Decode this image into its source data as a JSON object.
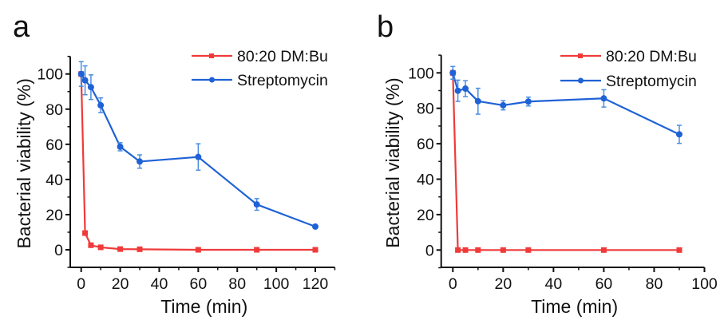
{
  "chart_data": [
    {
      "panel": "a",
      "type": "line",
      "title": "",
      "xlabel": "Time (min)",
      "ylabel": "Bacterial viability (%)",
      "xlim": [
        -5,
        130
      ],
      "ylim": [
        -10,
        110
      ],
      "xticks": [
        0,
        20,
        40,
        60,
        80,
        100,
        120
      ],
      "yticks": [
        0,
        20,
        40,
        60,
        80,
        100
      ],
      "grid": false,
      "legend_position": "top-right",
      "series": [
        {
          "name": "80:20 DM:Bu",
          "color": "#f03a3a",
          "marker": "square",
          "x": [
            0,
            2,
            5,
            10,
            20,
            30,
            60,
            90,
            120
          ],
          "y": [
            100,
            9.5,
            2.6,
            1.4,
            0.4,
            0.3,
            0,
            0,
            0
          ],
          "err": [
            0,
            0,
            0,
            0,
            0,
            0,
            0,
            0,
            0
          ]
        },
        {
          "name": "Streptomycin",
          "color": "#1f62d6",
          "errcolor": "#4a8de0",
          "marker": "circle",
          "x": [
            0,
            2,
            5,
            10,
            20,
            30,
            60,
            90,
            120
          ],
          "y": [
            100,
            96.4,
            92.5,
            82.2,
            58.6,
            50.2,
            52.8,
            25.8,
            13.2
          ],
          "err": [
            7,
            8.2,
            7,
            4.2,
            2.3,
            3.8,
            7.5,
            3.3,
            0
          ]
        }
      ]
    },
    {
      "panel": "b",
      "type": "line",
      "title": "",
      "xlabel": "Time (min)",
      "ylabel": "Bacterial viability (%)",
      "xlim": [
        -5,
        100
      ],
      "ylim": [
        -10,
        110
      ],
      "xticks": [
        0,
        20,
        40,
        60,
        80,
        100
      ],
      "yticks": [
        0,
        20,
        40,
        60,
        80,
        100
      ],
      "grid": false,
      "legend_position": "top-right",
      "series": [
        {
          "name": "80:20 DM:Bu",
          "color": "#f03a3a",
          "marker": "square",
          "x": [
            0,
            2,
            5,
            10,
            20,
            30,
            60,
            90
          ],
          "y": [
            100,
            0,
            0,
            0,
            0,
            0,
            0,
            0
          ],
          "err": [
            0,
            0,
            0,
            0,
            0,
            0,
            0,
            0
          ]
        },
        {
          "name": "Streptomycin",
          "color": "#1f62d6",
          "errcolor": "#4a8de0",
          "marker": "circle",
          "x": [
            0,
            2,
            5,
            10,
            20,
            30,
            60,
            90
          ],
          "y": [
            100,
            89.9,
            91.1,
            84,
            81.7,
            83.8,
            85.6,
            65.3
          ],
          "err": [
            3.6,
            6,
            4.5,
            7.3,
            2.6,
            2.5,
            4.9,
            5.1
          ]
        }
      ]
    }
  ]
}
